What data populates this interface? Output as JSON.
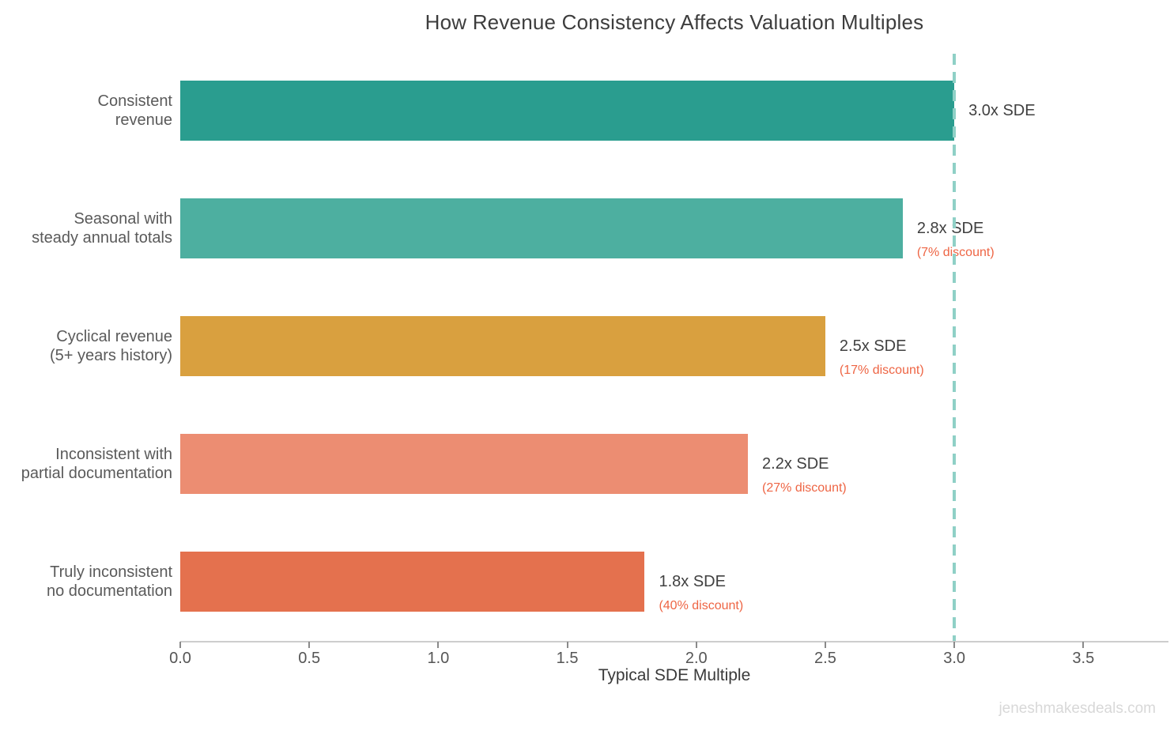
{
  "title": "How Revenue Consistency Affects Valuation Multiples",
  "watermark": "jeneshmakesdeals.com",
  "colors": {
    "background": "#ffffff",
    "title_text": "#3d3d3d",
    "category_text": "#5a5a5a",
    "value_text": "#404040",
    "discount_text": "#ee6544",
    "axis_line": "#cdcdcd",
    "tick_text": "#555555",
    "reference_line": "#8fd0c6"
  },
  "chart_data": {
    "type": "bar",
    "orientation": "horizontal",
    "title": "How Revenue Consistency Affects Valuation Multiples",
    "xlabel": "Typical SDE Multiple",
    "ylabel": "",
    "xlim": [
      0,
      3.83
    ],
    "grid": false,
    "legend": false,
    "x_tick_labels": [
      "0.0",
      "0.5",
      "1.0",
      "1.5",
      "2.0",
      "2.5",
      "3.0",
      "3.5"
    ],
    "reference_line": {
      "value": 3.0,
      "style": "dashed",
      "color": "#8fd0c6"
    },
    "categories": [
      "Consistent revenue",
      "Seasonal with steady annual totals",
      "Cyclical revenue (5+ years history)",
      "Inconsistent with partial documentation",
      "Truly inconsistent no documentation"
    ],
    "values": [
      3.0,
      2.8,
      2.5,
      2.2,
      1.8
    ],
    "bars": [
      {
        "category_line1": "Consistent",
        "category_line2": "revenue",
        "value": 3.0,
        "value_label": "3.0x SDE",
        "discount_label": "",
        "color": "#2a9d8f"
      },
      {
        "category_line1": "Seasonal with",
        "category_line2": "steady annual totals",
        "value": 2.8,
        "value_label": "2.8x SDE",
        "discount_label": "(7% discount)",
        "color": "#4dafa0"
      },
      {
        "category_line1": "Cyclical revenue",
        "category_line2": "(5+ years history)",
        "value": 2.5,
        "value_label": "2.5x SDE",
        "discount_label": "(17% discount)",
        "color": "#d9a03f"
      },
      {
        "category_line1": "Inconsistent with",
        "category_line2": "partial documentation",
        "value": 2.2,
        "value_label": "2.2x SDE",
        "discount_label": "(27% discount)",
        "color": "#ec8d72"
      },
      {
        "category_line1": "Truly inconsistent",
        "category_line2": "no documentation",
        "value": 1.8,
        "value_label": "1.8x SDE",
        "discount_label": "(40% discount)",
        "color": "#e4714e"
      }
    ]
  }
}
